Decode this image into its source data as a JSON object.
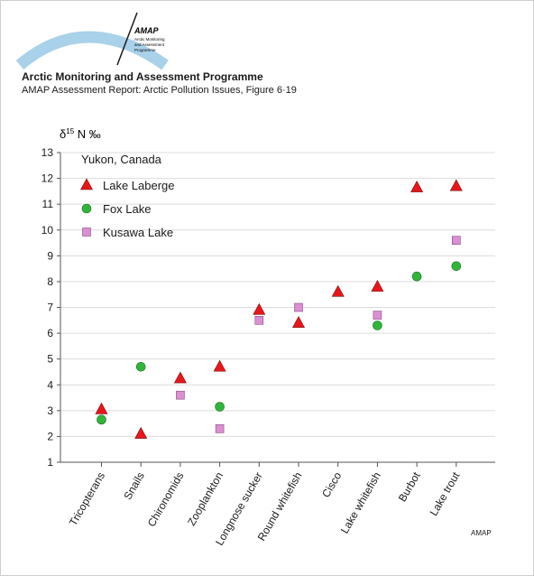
{
  "header": {
    "logo_text": "AMAP",
    "logo_subtext": [
      "Arctic Monitoring",
      "and Assessment",
      "Programme"
    ],
    "title": "Arctic Monitoring and Assessment Programme",
    "subtitle": "AMAP Assessment Report: Arctic Pollution Issues, Figure 6·19"
  },
  "credit": "AMAP",
  "colors": {
    "lake_laberge": "#e8161b",
    "fox_lake": "#2fb63a",
    "kusawa_lake": "#d98fd2",
    "grid": "#dcdcdc",
    "logo_arc": "#a9d1ea"
  },
  "chart_data": {
    "type": "scatter",
    "ylabel": "δ15 N ‰",
    "ylabel_parts": [
      "δ",
      "15",
      " N ‰"
    ],
    "ylim": [
      1,
      13
    ],
    "yticks": [
      1,
      2,
      3,
      4,
      5,
      6,
      7,
      8,
      9,
      10,
      11,
      12,
      13
    ],
    "grid": true,
    "legend_title": "Yukon, Canada",
    "legend_position": "top-left",
    "categories": [
      "Tricopterans",
      "Snails",
      "Chironomids",
      "Zooplankton",
      "Longnose sucker",
      "Round whitefish",
      "Cisco",
      "Lake whitefish",
      "Burbot",
      "Lake trout"
    ],
    "series": [
      {
        "name": "Lake Laberge",
        "marker": "triangle",
        "color": "#e8161b",
        "values": [
          3.05,
          2.1,
          4.25,
          4.7,
          6.9,
          6.4,
          7.6,
          7.8,
          11.65,
          11.7
        ]
      },
      {
        "name": "Fox Lake",
        "marker": "circle",
        "color": "#2fb63a",
        "values": [
          2.65,
          4.7,
          null,
          3.15,
          null,
          null,
          null,
          6.3,
          8.2,
          8.6
        ]
      },
      {
        "name": "Kusawa Lake",
        "marker": "square",
        "color": "#d98fd2",
        "values": [
          null,
          null,
          3.6,
          2.3,
          6.5,
          7.0,
          null,
          6.7,
          null,
          9.6
        ]
      }
    ]
  }
}
